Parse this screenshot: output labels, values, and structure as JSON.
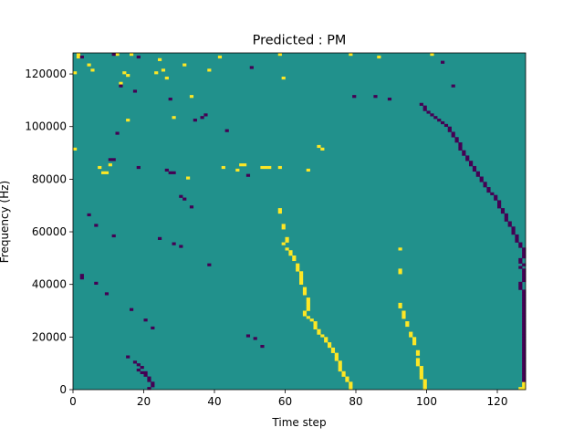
{
  "chart_data": {
    "type": "heatmap",
    "title": "Predicted : PM",
    "xlabel": "Time step",
    "ylabel": "Frequency (Hz)",
    "xlim": [
      0,
      128
    ],
    "ylim": [
      0,
      128000
    ],
    "x_ticks": [
      0,
      20,
      40,
      60,
      80,
      100,
      120
    ],
    "y_ticks": [
      0,
      20000,
      40000,
      60000,
      80000,
      100000,
      120000
    ],
    "x_tick_labels": [
      "0",
      "20",
      "40",
      "60",
      "80",
      "100",
      "120"
    ],
    "y_tick_labels": [
      "0",
      "20000",
      "40000",
      "60000",
      "80000",
      "100000",
      "120000"
    ],
    "frequency_bins": 128,
    "time_steps": 128,
    "cell_values": "background cells are 0 (teal); yellow cells are +1; dark purple cells are -1",
    "colors": {
      "background": "#21918c",
      "high": "#fde725",
      "low": "#440154"
    },
    "high_cells": [
      [
        16,
        127
      ],
      [
        1,
        127
      ],
      [
        24,
        125
      ],
      [
        38,
        121
      ],
      [
        25,
        121
      ],
      [
        5,
        121
      ],
      [
        23,
        120
      ],
      [
        14,
        120
      ],
      [
        15,
        102
      ],
      [
        33,
        111
      ],
      [
        28,
        103
      ],
      [
        0,
        91
      ],
      [
        7,
        84
      ],
      [
        46,
        83
      ],
      [
        42,
        84
      ],
      [
        8,
        82
      ],
      [
        9,
        82
      ],
      [
        32,
        80
      ],
      [
        10,
        85
      ],
      [
        86,
        126
      ],
      [
        12,
        127
      ],
      [
        1,
        126
      ],
      [
        58,
        127
      ],
      [
        41,
        126
      ],
      [
        31,
        123
      ],
      [
        4,
        123
      ],
      [
        0,
        120
      ],
      [
        15,
        119
      ],
      [
        26,
        118
      ],
      [
        13,
        116
      ],
      [
        59,
        118
      ],
      [
        101,
        127
      ],
      [
        70,
        91
      ],
      [
        69,
        92
      ],
      [
        47,
        85
      ],
      [
        48,
        85
      ],
      [
        53,
        84
      ],
      [
        54,
        84
      ],
      [
        55,
        84
      ],
      [
        58,
        84
      ],
      [
        66,
        83
      ],
      [
        78,
        127
      ],
      [
        58,
        68
      ],
      [
        58,
        67
      ],
      [
        59,
        62
      ],
      [
        59,
        61
      ],
      [
        60,
        57
      ],
      [
        60,
        56
      ],
      [
        59,
        55
      ],
      [
        60,
        53
      ],
      [
        61,
        52
      ],
      [
        61,
        51
      ],
      [
        62,
        50
      ],
      [
        62,
        49
      ],
      [
        63,
        47
      ],
      [
        63,
        46
      ],
      [
        63,
        45
      ],
      [
        64,
        44
      ],
      [
        64,
        43
      ],
      [
        64,
        42
      ],
      [
        64,
        41
      ],
      [
        64,
        40
      ],
      [
        65,
        38
      ],
      [
        65,
        37
      ],
      [
        65,
        36
      ],
      [
        66,
        34
      ],
      [
        66,
        33
      ],
      [
        66,
        32
      ],
      [
        66,
        31
      ],
      [
        66,
        30
      ],
      [
        65,
        29
      ],
      [
        65,
        28
      ],
      [
        66,
        27
      ],
      [
        67,
        26
      ],
      [
        68,
        25
      ],
      [
        68,
        24
      ],
      [
        68,
        23
      ],
      [
        69,
        22
      ],
      [
        69,
        21
      ],
      [
        70,
        20
      ],
      [
        71,
        19
      ],
      [
        71,
        18
      ],
      [
        72,
        17
      ],
      [
        72,
        16
      ],
      [
        73,
        15
      ],
      [
        73,
        14
      ],
      [
        74,
        13
      ],
      [
        74,
        12
      ],
      [
        74,
        11
      ],
      [
        75,
        10
      ],
      [
        75,
        9
      ],
      [
        75,
        8
      ],
      [
        75,
        7
      ],
      [
        76,
        6
      ],
      [
        76,
        5
      ],
      [
        77,
        4
      ],
      [
        77,
        3
      ],
      [
        78,
        2
      ],
      [
        78,
        1
      ],
      [
        78,
        0
      ],
      [
        92,
        53
      ],
      [
        92,
        45
      ],
      [
        92,
        44
      ],
      [
        92,
        32
      ],
      [
        92,
        31
      ],
      [
        93,
        29
      ],
      [
        93,
        28
      ],
      [
        93,
        27
      ],
      [
        94,
        25
      ],
      [
        94,
        24
      ],
      [
        95,
        21
      ],
      [
        95,
        20
      ],
      [
        96,
        19
      ],
      [
        96,
        18
      ],
      [
        96,
        17
      ],
      [
        97,
        14
      ],
      [
        97,
        13
      ],
      [
        97,
        11
      ],
      [
        97,
        10
      ],
      [
        97,
        9
      ],
      [
        98,
        8
      ],
      [
        98,
        7
      ],
      [
        98,
        6
      ],
      [
        98,
        5
      ],
      [
        98,
        4
      ],
      [
        99,
        3
      ],
      [
        99,
        2
      ],
      [
        99,
        1
      ],
      [
        99,
        0
      ],
      [
        127,
        0
      ],
      [
        126,
        0
      ],
      [
        127,
        1
      ],
      [
        127,
        2
      ]
    ],
    "low_cells": [
      [
        11,
        127
      ],
      [
        2,
        126
      ],
      [
        18,
        126
      ],
      [
        50,
        122
      ],
      [
        13,
        115
      ],
      [
        17,
        113
      ],
      [
        27,
        110
      ],
      [
        37,
        104
      ],
      [
        36,
        103
      ],
      [
        34,
        102
      ],
      [
        79,
        111
      ],
      [
        43,
        98
      ],
      [
        12,
        97
      ],
      [
        10,
        87
      ],
      [
        11,
        87
      ],
      [
        18,
        84
      ],
      [
        26,
        83
      ],
      [
        27,
        82
      ],
      [
        28,
        82
      ],
      [
        49,
        81
      ],
      [
        30,
        73
      ],
      [
        31,
        72
      ],
      [
        33,
        69
      ],
      [
        4,
        66
      ],
      [
        6,
        62
      ],
      [
        11,
        58
      ],
      [
        24,
        57
      ],
      [
        28,
        55
      ],
      [
        30,
        54
      ],
      [
        38,
        47
      ],
      [
        2,
        43
      ],
      [
        2,
        42
      ],
      [
        6,
        40
      ],
      [
        9,
        36
      ],
      [
        16,
        30
      ],
      [
        20,
        26
      ],
      [
        22,
        23
      ],
      [
        49,
        20
      ],
      [
        51,
        19
      ],
      [
        53,
        16
      ],
      [
        15,
        12
      ],
      [
        17,
        10
      ],
      [
        18,
        9
      ],
      [
        19,
        8
      ],
      [
        18,
        7
      ],
      [
        19,
        6
      ],
      [
        20,
        6
      ],
      [
        20,
        5
      ],
      [
        21,
        4
      ],
      [
        21,
        3
      ],
      [
        22,
        2
      ],
      [
        22,
        1
      ],
      [
        21,
        0
      ],
      [
        85,
        111
      ],
      [
        89,
        110
      ],
      [
        104,
        124
      ],
      [
        107,
        115
      ],
      [
        98,
        108
      ],
      [
        99,
        107
      ],
      [
        99,
        106
      ],
      [
        100,
        105
      ],
      [
        101,
        104
      ],
      [
        102,
        103
      ],
      [
        103,
        102
      ],
      [
        104,
        101
      ],
      [
        105,
        100
      ],
      [
        106,
        99
      ],
      [
        106,
        98
      ],
      [
        107,
        97
      ],
      [
        107,
        96
      ],
      [
        108,
        95
      ],
      [
        108,
        94
      ],
      [
        109,
        93
      ],
      [
        109,
        92
      ],
      [
        109,
        91
      ],
      [
        110,
        90
      ],
      [
        110,
        89
      ],
      [
        111,
        88
      ],
      [
        111,
        87
      ],
      [
        112,
        86
      ],
      [
        112,
        85
      ],
      [
        113,
        84
      ],
      [
        113,
        83
      ],
      [
        114,
        82
      ],
      [
        114,
        81
      ],
      [
        115,
        80
      ],
      [
        115,
        79
      ],
      [
        116,
        78
      ],
      [
        116,
        77
      ],
      [
        117,
        76
      ],
      [
        117,
        75
      ],
      [
        118,
        74
      ],
      [
        119,
        73
      ],
      [
        119,
        72
      ],
      [
        120,
        71
      ],
      [
        120,
        70
      ],
      [
        120,
        69
      ],
      [
        121,
        68
      ],
      [
        121,
        67
      ],
      [
        122,
        66
      ],
      [
        122,
        65
      ],
      [
        122,
        64
      ],
      [
        123,
        63
      ],
      [
        123,
        62
      ],
      [
        124,
        61
      ],
      [
        124,
        60
      ],
      [
        124,
        59
      ],
      [
        125,
        58
      ],
      [
        125,
        57
      ],
      [
        125,
        56
      ],
      [
        126,
        55
      ],
      [
        126,
        54
      ],
      [
        127,
        53
      ],
      [
        127,
        52
      ],
      [
        127,
        51
      ],
      [
        127,
        50
      ],
      [
        126,
        49
      ],
      [
        126,
        48
      ],
      [
        127,
        47
      ],
      [
        126,
        46
      ],
      [
        127,
        45
      ],
      [
        127,
        44
      ],
      [
        127,
        43
      ],
      [
        127,
        42
      ],
      [
        127,
        41
      ],
      [
        126,
        40
      ],
      [
        126,
        39
      ],
      [
        126,
        38
      ],
      [
        127,
        37
      ],
      [
        127,
        36
      ],
      [
        127,
        35
      ],
      [
        127,
        34
      ],
      [
        127,
        33
      ],
      [
        127,
        32
      ],
      [
        127,
        31
      ],
      [
        127,
        30
      ],
      [
        127,
        29
      ],
      [
        127,
        28
      ],
      [
        127,
        27
      ],
      [
        127,
        26
      ],
      [
        127,
        25
      ],
      [
        127,
        24
      ],
      [
        127,
        23
      ],
      [
        127,
        22
      ],
      [
        127,
        21
      ],
      [
        127,
        20
      ],
      [
        127,
        19
      ],
      [
        127,
        18
      ],
      [
        127,
        17
      ],
      [
        127,
        16
      ],
      [
        127,
        15
      ],
      [
        127,
        14
      ],
      [
        127,
        13
      ],
      [
        127,
        12
      ],
      [
        127,
        11
      ],
      [
        127,
        10
      ],
      [
        127,
        9
      ],
      [
        127,
        8
      ],
      [
        127,
        7
      ],
      [
        127,
        6
      ],
      [
        127,
        5
      ],
      [
        127,
        4
      ],
      [
        127,
        3
      ]
    ]
  }
}
